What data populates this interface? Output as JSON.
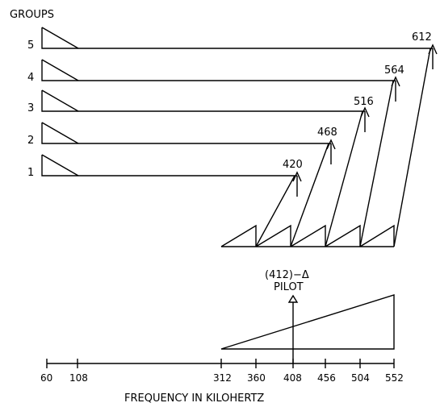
{
  "header": {
    "groups_label": "GROUPS"
  },
  "groups": [
    {
      "number": "5",
      "carrier": "612"
    },
    {
      "number": "4",
      "carrier": "564"
    },
    {
      "number": "3",
      "carrier": "516"
    },
    {
      "number": "2",
      "carrier": "468"
    },
    {
      "number": "1",
      "carrier": "420"
    }
  ],
  "pilot": {
    "label_top": "(412)−Δ",
    "label_bottom": "PILOT"
  },
  "axis": {
    "ticks": [
      "60",
      "108",
      "312",
      "360",
      "408",
      "456",
      "504",
      "552"
    ],
    "title": "FREQUENCY IN KILOHERTZ"
  }
}
